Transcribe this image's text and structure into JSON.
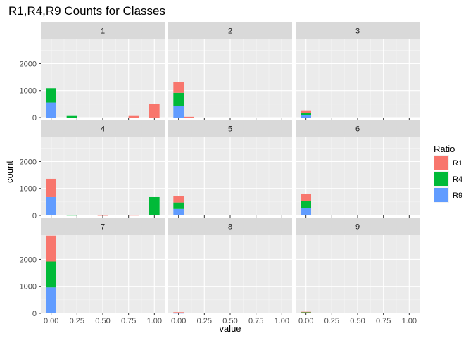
{
  "chart_data": {
    "type": "bar",
    "stacked": true,
    "faceted": true,
    "title": "R1,R4,R9 Counts for Classes",
    "xlabel": "value",
    "ylabel": "count",
    "x_ticks": [
      "0.00",
      "0.25",
      "0.50",
      "0.75",
      "1.00"
    ],
    "x_tick_values": [
      0,
      0.25,
      0.5,
      0.75,
      1
    ],
    "y_ticks": [
      "0",
      "1000",
      "2000"
    ],
    "y_tick_values": [
      0,
      1000,
      2000
    ],
    "xlim": [
      -0.1,
      1.1
    ],
    "ylim": [
      0,
      2900
    ],
    "bin_width": 0.1,
    "grid": true,
    "legend": {
      "title": "Ratio",
      "placement": "right",
      "entries": [
        {
          "name": "R1",
          "color": "#F8766D"
        },
        {
          "name": "R4",
          "color": "#00BA38"
        },
        {
          "name": "R9",
          "color": "#619CFF"
        }
      ]
    },
    "stack_order": [
      "R9",
      "R4",
      "R1"
    ],
    "facets": [
      {
        "label": "1",
        "bars": [
          {
            "x": 0,
            "R9": 560,
            "R4": 530,
            "R1": 0
          },
          {
            "x": 0.2,
            "R9": 0,
            "R4": 60,
            "R1": 0
          },
          {
            "x": 0.8,
            "R9": 0,
            "R4": 0,
            "R1": 60
          },
          {
            "x": 1.0,
            "R9": 0,
            "R4": 0,
            "R1": 500
          }
        ]
      },
      {
        "label": "2",
        "bars": [
          {
            "x": 0,
            "R9": 440,
            "R4": 480,
            "R1": 400
          },
          {
            "x": 0.1,
            "R9": 0,
            "R4": 0,
            "R1": 30
          }
        ]
      },
      {
        "label": "3",
        "bars": [
          {
            "x": 0,
            "R9": 90,
            "R4": 90,
            "R1": 90
          }
        ]
      },
      {
        "label": "4",
        "bars": [
          {
            "x": 0,
            "R9": 680,
            "R4": 0,
            "R1": 680
          },
          {
            "x": 0.2,
            "R9": 0,
            "R4": 15,
            "R1": 0
          },
          {
            "x": 0.5,
            "R9": 0,
            "R4": 0,
            "R1": 10
          },
          {
            "x": 0.8,
            "R9": 0,
            "R4": 0,
            "R1": 15
          },
          {
            "x": 1.0,
            "R9": 0,
            "R4": 680,
            "R1": 0
          }
        ]
      },
      {
        "label": "5",
        "bars": [
          {
            "x": 0,
            "R9": 240,
            "R4": 240,
            "R1": 240
          }
        ]
      },
      {
        "label": "6",
        "bars": [
          {
            "x": 0,
            "R9": 270,
            "R4": 270,
            "R1": 270
          }
        ]
      },
      {
        "label": "7",
        "bars": [
          {
            "x": 0,
            "R9": 960,
            "R4": 960,
            "R1": 960
          }
        ]
      },
      {
        "label": "8",
        "bars": [
          {
            "x": 0,
            "R9": 15,
            "R4": 15,
            "R1": 15
          }
        ]
      },
      {
        "label": "9",
        "bars": [
          {
            "x": 0,
            "R9": 20,
            "R4": 20,
            "R1": 20
          },
          {
            "x": 1.0,
            "R9": 20,
            "R4": 0,
            "R1": 0
          }
        ]
      }
    ]
  }
}
